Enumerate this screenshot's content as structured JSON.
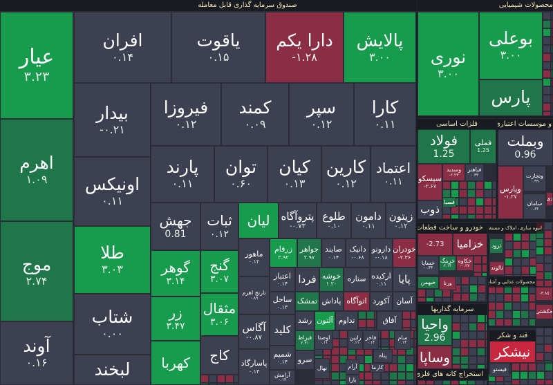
{
  "colors": {
    "neutral": "#3c4050",
    "up_strong": "#169c4c",
    "up": "#1f7649",
    "down": "#8b2d45",
    "down_strong": "#c8283f",
    "background": "#2a2d37",
    "header_text": "#f2e7b4"
  },
  "headers": [
    "صندوق سرمایه گذاری قابل معامله",
    "محصولات شیمیایی",
    "فلزات اساسی",
    "و موسسات اعتباری",
    "خودرو و ساخت قطعات",
    "انبوه سازی، املاک و مستغلات",
    "محصولات غذایی و آشامیدنی",
    "سرمایه گذاریها",
    "قند و شکر",
    "استخراج کانه های فلزی"
  ],
  "tiles": [
    {
      "symbol": "عیار",
      "change": "۳.۲۳",
      "status": "g"
    },
    {
      "symbol": "اهرم",
      "change": "۱.۰۹",
      "status": "d"
    },
    {
      "symbol": "موج",
      "change": "۲.۷۴",
      "status": "d"
    },
    {
      "symbol": "آوند",
      "change": "۰.۱۶",
      "status": "n"
    },
    {
      "symbol": "افران",
      "change": "۰.۱۴",
      "status": "n"
    },
    {
      "symbol": "یاقوت",
      "change": "۰.۱۵",
      "status": "n"
    },
    {
      "symbol": "دارا یکم",
      "change": "-۱.۲۸",
      "status": "r"
    },
    {
      "symbol": "پالایش",
      "change": "۳.۰۰",
      "status": "g"
    },
    {
      "symbol": "بیدار",
      "change": "-۰.۲۱",
      "status": "n"
    },
    {
      "symbol": "فیروزا",
      "change": "۰.۱۲",
      "status": "n"
    },
    {
      "symbol": "کمند",
      "change": "۰.۰۹",
      "status": "n"
    },
    {
      "symbol": "سپر",
      "change": "۰.۱۲",
      "status": "n"
    },
    {
      "symbol": "کارا",
      "change": "۰.۱۱",
      "status": "n"
    },
    {
      "symbol": "اونیکس",
      "change": "۰.۱۱",
      "status": "n"
    },
    {
      "symbol": "پارند",
      "change": "۰.۱۱",
      "status": "n"
    },
    {
      "symbol": "توان",
      "change": "۰.۶۰",
      "status": "n"
    },
    {
      "symbol": "کیان",
      "change": "۰.۱۳",
      "status": "n"
    },
    {
      "symbol": "کارین",
      "change": "۰.۱۲",
      "status": "n"
    },
    {
      "symbol": "اعتماد",
      "change": "۰.۱۱",
      "status": "n"
    },
    {
      "symbol": "طلا",
      "change": "۳.۰۳",
      "status": "g"
    },
    {
      "symbol": "شتاب",
      "change": "۰.۰۰",
      "status": "n"
    },
    {
      "symbol": "لبخند",
      "change": "",
      "status": "n"
    },
    {
      "symbol": "جهش",
      "change": "0.81",
      "status": "n"
    },
    {
      "symbol": "ثبات",
      "change": "۰.۱۲",
      "status": "n"
    },
    {
      "symbol": "لیان",
      "change": "",
      "status": "g"
    },
    {
      "symbol": "پتروآگاه",
      "change": "-۰.۷۳",
      "status": "n"
    },
    {
      "symbol": "طلوع",
      "change": "۰.۱۰",
      "status": "n"
    },
    {
      "symbol": "دامون",
      "change": "۰.۱۱",
      "status": "n"
    },
    {
      "symbol": "زیتون",
      "change": "۰.۱۲",
      "status": "n"
    },
    {
      "symbol": "گوهر",
      "change": "۳.۱۴",
      "status": "g"
    },
    {
      "symbol": "زر",
      "change": "۳.۴۷",
      "status": "g"
    },
    {
      "symbol": "کهربا",
      "change": "",
      "status": "g"
    },
    {
      "symbol": "گنج",
      "change": "۳.۰۷",
      "status": "g"
    },
    {
      "symbol": "مثقال",
      "change": "۳.۰۶",
      "status": "g"
    },
    {
      "symbol": "کاج",
      "change": "",
      "status": "n"
    },
    {
      "symbol": "ماهور",
      "change": "۰.۱۲",
      "status": "n"
    },
    {
      "symbol": "نارنج اهرم",
      "change": "۰.۸۹",
      "status": "n"
    },
    {
      "symbol": "آگاس",
      "change": "-۰.۸۷",
      "status": "n"
    },
    {
      "symbol": "پاسارگاد",
      "change": "۰.۱۴",
      "status": "n"
    },
    {
      "symbol": "زرفام",
      "change": "۳.۹۲",
      "status": "g"
    },
    {
      "symbol": "جواهر",
      "change": "۲.۹۷",
      "status": "d"
    },
    {
      "symbol": "صایند",
      "change": "۰.۱۴",
      "status": "n"
    },
    {
      "symbol": "دانیک",
      "change": "-۰.۶۸",
      "status": "n"
    },
    {
      "symbol": "دارونو",
      "change": "-۰.۱۸",
      "status": "n"
    },
    {
      "symbol": "خودران",
      "change": "-۲.۳۶",
      "status": "r"
    },
    {
      "symbol": "اعتبار",
      "change": "۰.۱۴",
      "status": "n"
    },
    {
      "symbol": "فردا",
      "change": "",
      "status": "n"
    },
    {
      "symbol": "خوشه",
      "change": "۱.۲۰",
      "status": "d"
    },
    {
      "symbol": "ستاره",
      "change": "",
      "status": "n"
    },
    {
      "symbol": "ارکیده",
      "change": "۰.۱۱",
      "status": "n"
    },
    {
      "symbol": "پایا",
      "change": "",
      "status": "n"
    },
    {
      "symbol": "ساحل",
      "change": "۰.۱۳",
      "status": "n"
    },
    {
      "symbol": "تمشک",
      "change": "",
      "status": "d"
    },
    {
      "symbol": "پاداش",
      "change": "",
      "status": "n"
    },
    {
      "symbol": "اتوآگاه",
      "change": "",
      "status": "r"
    },
    {
      "symbol": "آکورد",
      "change": "",
      "status": "n"
    },
    {
      "symbol": "آسان",
      "change": "",
      "status": "n"
    },
    {
      "symbol": "کلید",
      "change": "",
      "status": "n"
    },
    {
      "symbol": "رشد",
      "change": "",
      "status": "n"
    },
    {
      "symbol": "آلتون",
      "change": "",
      "status": "g"
    },
    {
      "symbol": "تداوم",
      "change": "",
      "status": "n"
    },
    {
      "symbol": "آفاق",
      "change": "",
      "status": "n"
    },
    {
      "symbol": "قیراط",
      "change": "۲.۳۱",
      "status": "d"
    },
    {
      "symbol": "شمیم",
      "change": "۰.۱۴",
      "status": "n"
    },
    {
      "symbol": "سرو",
      "change": "",
      "status": "n"
    },
    {
      "symbol": "آرامش",
      "change": "۰.۱۳",
      "status": "n"
    },
    {
      "symbol": "اوصتا",
      "change": "۰.۱۱",
      "status": "n"
    },
    {
      "symbol": "رابین",
      "change": "۰.۱۱",
      "status": "n"
    },
    {
      "symbol": "فاخر",
      "change": "۰.۱۴",
      "status": "n"
    },
    {
      "symbol": "سام",
      "change": "۰.۱۴",
      "status": "n"
    },
    {
      "symbol": "نهال",
      "change": "",
      "status": "n"
    },
    {
      "symbol": "پناه",
      "change": "",
      "status": "n"
    },
    {
      "symbol": "آرام",
      "change": "",
      "status": "n"
    },
    {
      "symbol": "کارما",
      "change": "",
      "status": "n"
    },
    {
      "symbol": "یارا",
      "change": "",
      "status": "n"
    },
    {
      "symbol": "نوری",
      "change": "۳.۰۰",
      "status": "g"
    },
    {
      "symbol": "بوعلی",
      "change": "۳.۰۰",
      "status": "g"
    },
    {
      "symbol": "پارس",
      "change": "",
      "status": "d"
    },
    {
      "symbol": "فولاد",
      "change": "1.25",
      "status": "d"
    },
    {
      "symbol": "فملی",
      "change": "1.25",
      "status": "d"
    },
    {
      "symbol": "سیسکو",
      "change": "-۲.۶۷",
      "status": "r"
    },
    {
      "symbol": "وسدید",
      "change": "-۲.۲۳",
      "status": "r"
    },
    {
      "symbol": "فباهنر",
      "change": "۰.۳۳",
      "status": "n"
    },
    {
      "symbol": "ذوب",
      "change": "",
      "status": "n"
    },
    {
      "symbol": "فصبا",
      "change": "",
      "status": "d"
    },
    {
      "symbol": "وبملت",
      "change": "0.96",
      "status": "n"
    },
    {
      "symbol": "وپارس",
      "change": "-۱.۲۷",
      "status": "r"
    },
    {
      "symbol": "وتجارت",
      "change": "۰.۹۹",
      "status": "n"
    },
    {
      "symbol": "سامان",
      "change": "۰.۶۴",
      "status": "n"
    },
    {
      "symbol": "دی",
      "change": "",
      "status": "r"
    },
    {
      "symbol": "",
      "change": "-2.73",
      "status": "r"
    },
    {
      "symbol": "خزامیا",
      "change": "",
      "status": "r"
    },
    {
      "symbol": "خساپا",
      "change": "-۰.۳۴",
      "status": "n"
    },
    {
      "symbol": "خرینگ",
      "change": "۲.۱۴",
      "status": "d"
    },
    {
      "symbol": "خکاوه",
      "change": "-۰.۲۷",
      "status": "r"
    },
    {
      "symbol": "خبهمن",
      "change": "",
      "status": "d"
    },
    {
      "symbol": "ورنا",
      "change": "",
      "status": "r"
    },
    {
      "symbol": "ثرود",
      "change": "",
      "status": "d"
    },
    {
      "symbol": "ثالوند",
      "change": "",
      "status": "r"
    },
    {
      "symbol": "واحیا",
      "change": "2.96",
      "status": "d"
    },
    {
      "symbol": "وساپا",
      "change": "",
      "status": "r"
    },
    {
      "symbol": "نیشکر",
      "change": "",
      "status": "R"
    },
    {
      "symbol": "قیستو",
      "change": "",
      "status": "n"
    },
    {
      "symbol": "حکشتی",
      "change": "",
      "status": "r"
    },
    {
      "symbol": "",
      "change": "-۳.۸۵",
      "status": "r"
    }
  ]
}
